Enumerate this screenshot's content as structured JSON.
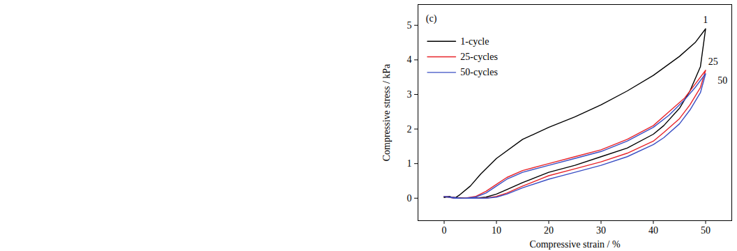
{
  "chart_data": {
    "type": "line",
    "xlabel": "Compressive strain / %",
    "ylabel": "Compressive stress / kPa",
    "xlim": [
      -5,
      55
    ],
    "ylim": [
      -0.65,
      5.6
    ],
    "xticks": [
      0,
      10,
      20,
      30,
      40,
      50
    ],
    "yticks": [
      0,
      1,
      2,
      3,
      4,
      5
    ],
    "grid": false,
    "legend": "top-left",
    "series": [
      {
        "name": "1-cycle",
        "color": "#000000",
        "x": [
          0,
          1,
          2,
          3,
          5,
          7,
          10,
          15,
          20,
          25,
          30,
          35,
          40,
          45,
          48,
          50,
          49,
          47,
          45,
          42,
          40,
          35,
          30,
          25,
          20,
          15,
          12,
          10,
          8,
          6,
          4,
          2,
          0
        ],
        "values": [
          0.02,
          0.05,
          0.0,
          0.1,
          0.35,
          0.7,
          1.15,
          1.7,
          2.05,
          2.35,
          2.7,
          3.1,
          3.55,
          4.1,
          4.5,
          4.9,
          3.8,
          3.1,
          2.6,
          2.1,
          1.85,
          1.45,
          1.2,
          0.95,
          0.75,
          0.45,
          0.25,
          0.12,
          0.03,
          0.0,
          0.0,
          0.02,
          0.05
        ]
      },
      {
        "name": "25-cycles",
        "color": "#e8242a",
        "x": [
          0,
          2,
          4,
          6,
          8,
          10,
          12,
          15,
          20,
          25,
          30,
          35,
          40,
          43,
          46,
          48,
          50,
          49,
          47,
          45,
          42,
          40,
          35,
          30,
          25,
          20,
          15,
          12,
          10,
          8,
          5,
          3,
          0
        ],
        "values": [
          0.05,
          0.0,
          0.0,
          0.05,
          0.2,
          0.4,
          0.6,
          0.8,
          1.0,
          1.2,
          1.4,
          1.7,
          2.1,
          2.5,
          2.9,
          3.3,
          3.7,
          3.2,
          2.7,
          2.3,
          1.9,
          1.65,
          1.3,
          1.05,
          0.85,
          0.65,
          0.35,
          0.15,
          0.05,
          0.0,
          0.0,
          0.0,
          0.05
        ]
      },
      {
        "name": "50-cycles",
        "color": "#3a4fc4",
        "x": [
          0,
          2,
          4,
          6,
          8,
          10,
          12,
          15,
          20,
          25,
          30,
          35,
          40,
          43,
          46,
          48,
          50,
          49,
          47,
          45,
          42,
          40,
          35,
          30,
          25,
          20,
          15,
          12,
          10,
          8,
          5,
          3,
          0
        ],
        "values": [
          0.05,
          0.0,
          0.0,
          0.03,
          0.15,
          0.35,
          0.55,
          0.75,
          0.95,
          1.15,
          1.35,
          1.65,
          2.05,
          2.4,
          2.85,
          3.2,
          3.6,
          3.05,
          2.55,
          2.15,
          1.75,
          1.55,
          1.2,
          0.95,
          0.75,
          0.55,
          0.3,
          0.12,
          0.03,
          0.0,
          0.0,
          0.0,
          0.05
        ]
      }
    ],
    "annotations": [
      {
        "text": "(c)",
        "x": -3.5,
        "y": 5.2
      },
      {
        "text": "1",
        "x": 49.5,
        "y": 5.15
      },
      {
        "text": "25",
        "x": 50.5,
        "y": 3.95
      },
      {
        "text": "50",
        "x": 52.3,
        "y": 3.4
      }
    ]
  }
}
